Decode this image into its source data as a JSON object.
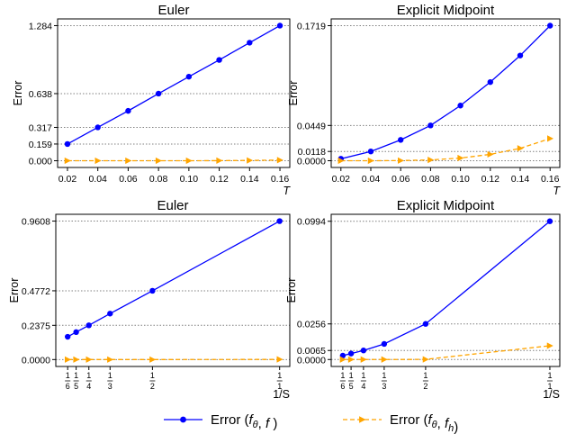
{
  "legend": {
    "entries": [
      {
        "label_prefix": "Error (",
        "math": [
          [
            "f",
            "i"
          ],
          [
            "θ",
            "sub-i"
          ],
          [
            ", ",
            ""
          ],
          [
            "f",
            "i"
          ],
          [
            " )",
            ""
          ]
        ],
        "color": "#0000ff",
        "marker": "circle",
        "dash": "solid"
      },
      {
        "label_prefix": "Error (",
        "math": [
          [
            "f",
            "i"
          ],
          [
            "θ",
            "sub-i"
          ],
          [
            ", ",
            ""
          ],
          [
            "f",
            "i"
          ],
          [
            "h",
            "sub-i"
          ],
          [
            ")",
            ""
          ]
        ],
        "color": "#ffa500",
        "marker": "triangle-right",
        "dash": "dashed"
      }
    ]
  },
  "chart_data": [
    {
      "type": "line",
      "title": "Euler",
      "xlabel": "T",
      "xlabel_italic": true,
      "ylabel": "Error",
      "xlim": [
        0.0135,
        0.1665
      ],
      "ylim": [
        -0.064,
        1.348
      ],
      "xticks": [
        0.02,
        0.04,
        0.06,
        0.08,
        0.1,
        0.12,
        0.14,
        0.16
      ],
      "xtick_labels": [
        "0.02",
        "0.04",
        "0.06",
        "0.08",
        "0.10",
        "0.12",
        "0.14",
        "0.16"
      ],
      "yticks": [
        0.0,
        0.159,
        0.317,
        0.638,
        1.284
      ],
      "ytick_labels": [
        "0.000",
        "0.159",
        "0.317",
        "0.638",
        "1.284"
      ],
      "hlines": [
        0.0,
        0.159,
        0.317,
        0.638,
        1.284
      ],
      "series": [
        {
          "name": "Error (fθ, f )",
          "color": "#0000ff",
          "marker": "circle",
          "dash": "solid",
          "x": [
            0.02,
            0.04,
            0.06,
            0.08,
            0.1,
            0.12,
            0.14,
            0.16
          ],
          "y": [
            0.159,
            0.317,
            0.474,
            0.638,
            0.799,
            0.958,
            1.122,
            1.284
          ]
        },
        {
          "name": "Error (fθ, fh)",
          "color": "#ffa500",
          "marker": "triangle-right",
          "dash": "dashed",
          "x": [
            0.02,
            0.04,
            0.06,
            0.08,
            0.1,
            0.12,
            0.14,
            0.16
          ],
          "y": [
            0.0,
            0.0,
            0.0,
            0.0,
            0.0,
            0.001,
            0.003,
            0.006
          ]
        }
      ]
    },
    {
      "type": "line",
      "title": "Explicit Midpoint",
      "xlabel": "T",
      "xlabel_italic": true,
      "ylabel": "Error",
      "xlim": [
        0.0135,
        0.1665
      ],
      "ylim": [
        -0.0086,
        0.1805
      ],
      "xticks": [
        0.02,
        0.04,
        0.06,
        0.08,
        0.1,
        0.12,
        0.14,
        0.16
      ],
      "xtick_labels": [
        "0.02",
        "0.04",
        "0.06",
        "0.08",
        "0.10",
        "0.12",
        "0.14",
        "0.16"
      ],
      "yticks": [
        0.0,
        0.0118,
        0.0449,
        0.1719
      ],
      "ytick_labels": [
        "0.0000",
        "0.0118",
        "0.0449",
        "0.1719"
      ],
      "hlines": [
        0.0,
        0.0118,
        0.0449,
        0.1719
      ],
      "series": [
        {
          "name": "Error (fθ, f )",
          "color": "#0000ff",
          "marker": "circle",
          "dash": "solid",
          "x": [
            0.02,
            0.04,
            0.06,
            0.08,
            0.1,
            0.12,
            0.14,
            0.16
          ],
          "y": [
            0.0025,
            0.0118,
            0.0265,
            0.0449,
            0.0702,
            0.1001,
            0.1339,
            0.1719
          ]
        },
        {
          "name": "Error (fθ, fh)",
          "color": "#ffa500",
          "marker": "triangle-right",
          "dash": "dashed",
          "x": [
            0.02,
            0.04,
            0.06,
            0.08,
            0.1,
            0.12,
            0.14,
            0.16
          ],
          "y": [
            0.0,
            0.0,
            0.0002,
            0.001,
            0.0034,
            0.0081,
            0.0158,
            0.0282
          ]
        }
      ]
    },
    {
      "type": "line",
      "title": "Euler",
      "xlabel": "1/S",
      "xlabel_italic": false,
      "ylabel": "Error",
      "xlim": [
        0.12,
        1.04
      ],
      "ylim": [
        -0.048,
        1.008
      ],
      "xticks": [
        0.1667,
        0.2,
        0.25,
        0.3333,
        0.5,
        1.0
      ],
      "xtick_fractions": [
        [
          "1",
          "6"
        ],
        [
          "1",
          "5"
        ],
        [
          "1",
          "4"
        ],
        [
          "1",
          "3"
        ],
        [
          "1",
          "2"
        ],
        [
          "1",
          "1"
        ]
      ],
      "yticks": [
        0.0,
        0.2375,
        0.4772,
        0.9608
      ],
      "ytick_labels": [
        "0.0000",
        "0.2375",
        "0.4772",
        "0.9608"
      ],
      "hlines": [
        0.0,
        0.2375,
        0.4772,
        0.9608
      ],
      "series": [
        {
          "name": "Error (fθ, f )",
          "color": "#0000ff",
          "marker": "circle",
          "dash": "solid",
          "x": [
            0.1667,
            0.2,
            0.25,
            0.3333,
            0.5,
            1.0
          ],
          "y": [
            0.158,
            0.1905,
            0.2375,
            0.319,
            0.4772,
            0.9608
          ]
        },
        {
          "name": "Error (fθ, fh)",
          "color": "#ffa500",
          "marker": "triangle-right",
          "dash": "dashed",
          "x": [
            0.1667,
            0.2,
            0.25,
            0.3333,
            0.5,
            1.0
          ],
          "y": [
            0.0,
            0.0,
            0.0,
            0.0,
            0.0,
            0.001
          ]
        }
      ]
    },
    {
      "type": "line",
      "title": "Explicit Midpoint",
      "xlabel": "1/S",
      "xlabel_italic": false,
      "ylabel": "Error",
      "xlim": [
        0.12,
        1.04
      ],
      "ylim": [
        -0.005,
        0.1044
      ],
      "xticks": [
        0.1667,
        0.2,
        0.25,
        0.3333,
        0.5,
        1.0
      ],
      "xtick_fractions": [
        [
          "1",
          "6"
        ],
        [
          "1",
          "5"
        ],
        [
          "1",
          "4"
        ],
        [
          "1",
          "3"
        ],
        [
          "1",
          "2"
        ],
        [
          "1",
          "1"
        ]
      ],
      "yticks": [
        0.0,
        0.0065,
        0.0256,
        0.0994
      ],
      "ytick_labels": [
        "0.0000",
        "0.0065",
        "0.0256",
        "0.0994"
      ],
      "hlines": [
        0.0,
        0.0065,
        0.0256,
        0.0994
      ],
      "series": [
        {
          "name": "Error (fθ, f )",
          "color": "#0000ff",
          "marker": "circle",
          "dash": "solid",
          "x": [
            0.1667,
            0.2,
            0.25,
            0.3333,
            0.5,
            1.0
          ],
          "y": [
            0.0028,
            0.0043,
            0.0065,
            0.0112,
            0.0256,
            0.0994
          ]
        },
        {
          "name": "Error (fθ, fh)",
          "color": "#ffa500",
          "marker": "triangle-right",
          "dash": "dashed",
          "x": [
            0.1667,
            0.2,
            0.25,
            0.3333,
            0.5,
            1.0
          ],
          "y": [
            0.0,
            0.0,
            0.0,
            0.0,
            0.0001,
            0.0099
          ]
        }
      ]
    }
  ]
}
